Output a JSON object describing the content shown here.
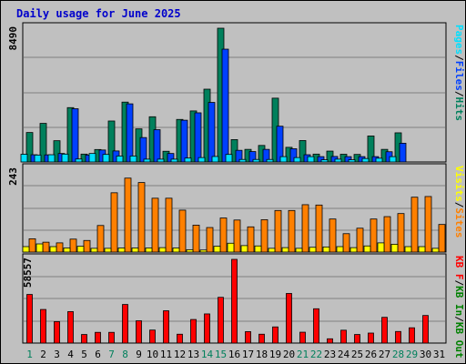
{
  "chart_data": [
    {
      "type": "bar",
      "title": "Daily usage for June 2025",
      "ymax_label": "8490",
      "legend": [
        "Pages",
        "Files",
        "Hits"
      ],
      "categories": [
        "1",
        "2",
        "3",
        "4",
        "5",
        "6",
        "7",
        "8",
        "9",
        "10",
        "11",
        "12",
        "13",
        "14",
        "15",
        "16",
        "17",
        "18",
        "19",
        "20",
        "21",
        "22",
        "23",
        "24",
        "25",
        "26",
        "27",
        "28",
        "29",
        "30",
        "31"
      ],
      "weekend_days": [
        "1",
        "7",
        "8",
        "14",
        "15",
        "21",
        "22",
        "28",
        "29"
      ],
      "ylim": [
        0,
        8490
      ],
      "series": [
        {
          "name": "Hits",
          "color": "#00805c",
          "values": [
            1870,
            2450,
            1350,
            3450,
            500,
            790,
            2600,
            3800,
            2100,
            2870,
            680,
            2700,
            3240,
            4620,
            8490,
            1420,
            800,
            1050,
            4050,
            930,
            1360,
            500,
            690,
            490,
            480,
            1650,
            800,
            1850,
            0,
            0,
            0
          ]
        },
        {
          "name": "Files",
          "color": "#0040ff",
          "values": [
            460,
            450,
            540,
            3380,
            440,
            760,
            700,
            3690,
            1550,
            2050,
            540,
            2650,
            3120,
            3780,
            7160,
            740,
            660,
            800,
            2270,
            840,
            460,
            340,
            350,
            340,
            340,
            340,
            650,
            1190,
            0,
            0,
            0
          ]
        },
        {
          "name": "Pages",
          "color": "#00e0ff",
          "values": [
            490,
            440,
            460,
            500,
            190,
            540,
            480,
            380,
            380,
            180,
            180,
            180,
            250,
            280,
            350,
            480,
            160,
            160,
            160,
            340,
            280,
            340,
            140,
            180,
            140,
            220,
            240,
            340,
            0,
            0,
            0
          ]
        }
      ]
    },
    {
      "type": "bar",
      "ymax_label": "243",
      "legend": [
        "Visits",
        "Sites"
      ],
      "categories": [
        "1",
        "2",
        "3",
        "4",
        "5",
        "6",
        "7",
        "8",
        "9",
        "10",
        "11",
        "12",
        "13",
        "14",
        "15",
        "16",
        "17",
        "18",
        "19",
        "20",
        "21",
        "22",
        "23",
        "24",
        "25",
        "26",
        "27",
        "28",
        "29",
        "30",
        "31"
      ],
      "ylim": [
        0,
        243
      ],
      "series": [
        {
          "name": "Sites",
          "color": "#ff8000",
          "values": [
            39,
            29,
            27,
            38,
            34,
            78,
            174,
            217,
            204,
            158,
            158,
            123,
            79,
            72,
            100,
            94,
            74,
            95,
            122,
            122,
            139,
            138,
            97,
            54,
            70,
            97,
            104,
            113,
            161,
            163,
            81
          ]
        },
        {
          "name": "Visits",
          "color": "#ffff00",
          "values": [
            16,
            24,
            16,
            12,
            17,
            11,
            11,
            12,
            12,
            12,
            13,
            12,
            7,
            6,
            17,
            26,
            19,
            18,
            11,
            13,
            11,
            14,
            15,
            16,
            13,
            18,
            27,
            23,
            16,
            16,
            11
          ]
        }
      ]
    },
    {
      "type": "bar",
      "ymax_label": "58557",
      "legend": [
        "KB F",
        "KB In",
        "KB Out"
      ],
      "categories": [
        "1",
        "2",
        "3",
        "4",
        "5",
        "6",
        "7",
        "8",
        "9",
        "10",
        "11",
        "12",
        "13",
        "14",
        "15",
        "16",
        "17",
        "18",
        "19",
        "20",
        "21",
        "22",
        "23",
        "24",
        "25",
        "26",
        "27",
        "28",
        "29",
        "30",
        "31"
      ],
      "ylim": [
        0,
        58557
      ],
      "series": [
        {
          "name": "KB F",
          "color": "#ff0000",
          "values": [
            34000,
            23500,
            15000,
            22000,
            6000,
            7500,
            7500,
            27000,
            15600,
            9100,
            22600,
            6200,
            16500,
            20400,
            32000,
            58557,
            8000,
            6200,
            11300,
            34700,
            7600,
            24000,
            3000,
            9000,
            6000,
            7000,
            18000,
            8100,
            10700,
            19300,
            0
          ]
        }
      ]
    }
  ]
}
